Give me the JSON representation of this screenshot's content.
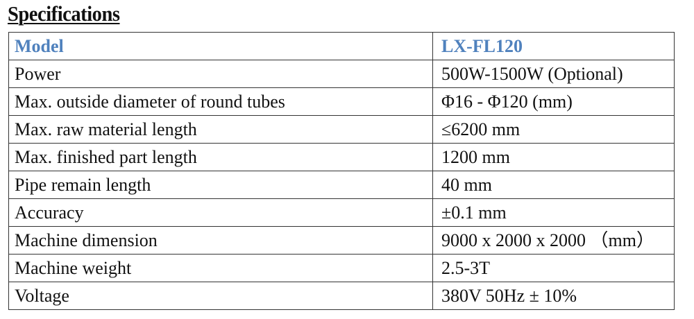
{
  "title": "Specifications",
  "table": {
    "header": {
      "label": "Model",
      "value": "LX-FL120"
    },
    "rows": [
      {
        "label": "Power",
        "value": "500W-1500W (Optional)"
      },
      {
        "label": "Max. outside diameter of round tubes",
        "value": "Φ16 - Φ120 (mm)"
      },
      {
        "label": "Max. raw material length",
        "value": "≤6200 mm"
      },
      {
        "label": "Max. finished part length",
        "value": "1200 mm"
      },
      {
        "label": "Pipe remain length",
        "value": "40 mm"
      },
      {
        "label": "Accuracy",
        "value": "±0.1 mm"
      },
      {
        "label": "Machine dimension",
        "value": "9000 x 2000 x 2000 （mm）"
      },
      {
        "label": "Machine weight",
        "value": "2.5-3T"
      },
      {
        "label": "Voltage",
        "value": "380V 50Hz ± 10%"
      }
    ]
  },
  "colors": {
    "header_text": "#4f81bd",
    "border": "#333333"
  }
}
